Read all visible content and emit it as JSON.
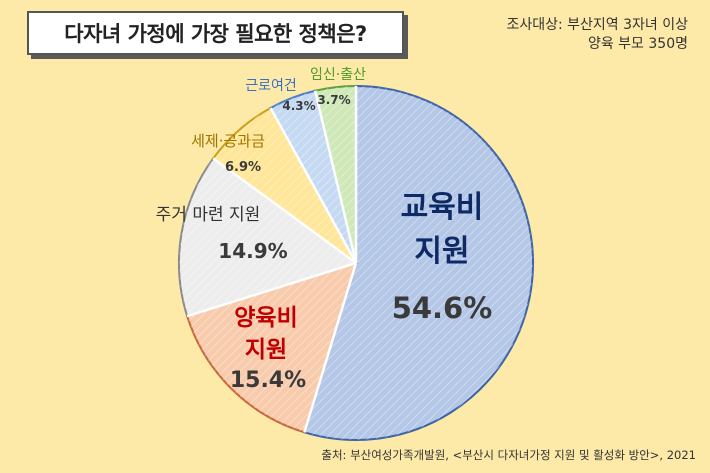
{
  "title": "다자녀 가정에 가장 필요한 정책은?",
  "survey_info": {
    "line1": "조사대상: 부산지역 3자녀 이상",
    "line2": "양육 부모 350명"
  },
  "source": "출처: 부산여성가족개발원, <부산시 다자녀가정 지원 및 활성화 방안>, 2021",
  "chart_data": {
    "type": "pie",
    "title": "다자녀 가정에 가장 필요한 정책은?",
    "slices": [
      {
        "label": "교육비 지원",
        "label_lines": [
          "교육비",
          "지원"
        ],
        "value": 54.6,
        "value_text": "54.6%",
        "color": "#b4c7e7",
        "edge": "#3e64a8",
        "label_color": "#0e2a66",
        "value_color": "#3a3a3a"
      },
      {
        "label": "양육비 지원",
        "label_lines": [
          "양육비",
          "지원"
        ],
        "value": 15.4,
        "value_text": "15.4%",
        "color": "#f8cbad",
        "edge": "#c8683a",
        "label_color": "#c00000",
        "value_color": "#3a3a3a"
      },
      {
        "label": "주거 마련 지원",
        "label_lines": [
          "주거 마련 지원"
        ],
        "value": 14.9,
        "value_text": "14.9%",
        "color": "#ededed",
        "edge": "#8a8a8a",
        "label_color": "#333333",
        "value_color": "#3a3a3a"
      },
      {
        "label": "세제·공과금",
        "label_lines": [
          "세제·공과금"
        ],
        "value": 6.9,
        "value_text": "6.9%",
        "color": "#ffe699",
        "edge": "#c9a21b",
        "label_color": "#a07400",
        "value_color": "#3a3a3a"
      },
      {
        "label": "근로여건",
        "label_lines": [
          "근로여건"
        ],
        "value": 4.3,
        "value_text": "4.3%",
        "color": "#c5daf2",
        "edge": "#4a7fc8",
        "label_color": "#3d6fc4",
        "value_color": "#3a3a3a"
      },
      {
        "label": "임신·출산",
        "label_lines": [
          "임신·출산"
        ],
        "value": 3.7,
        "value_text": "3.7%",
        "color": "#cfe8b8",
        "edge": "#5fa03a",
        "label_color": "#4e9a2a",
        "value_color": "#3a3a3a"
      }
    ]
  }
}
